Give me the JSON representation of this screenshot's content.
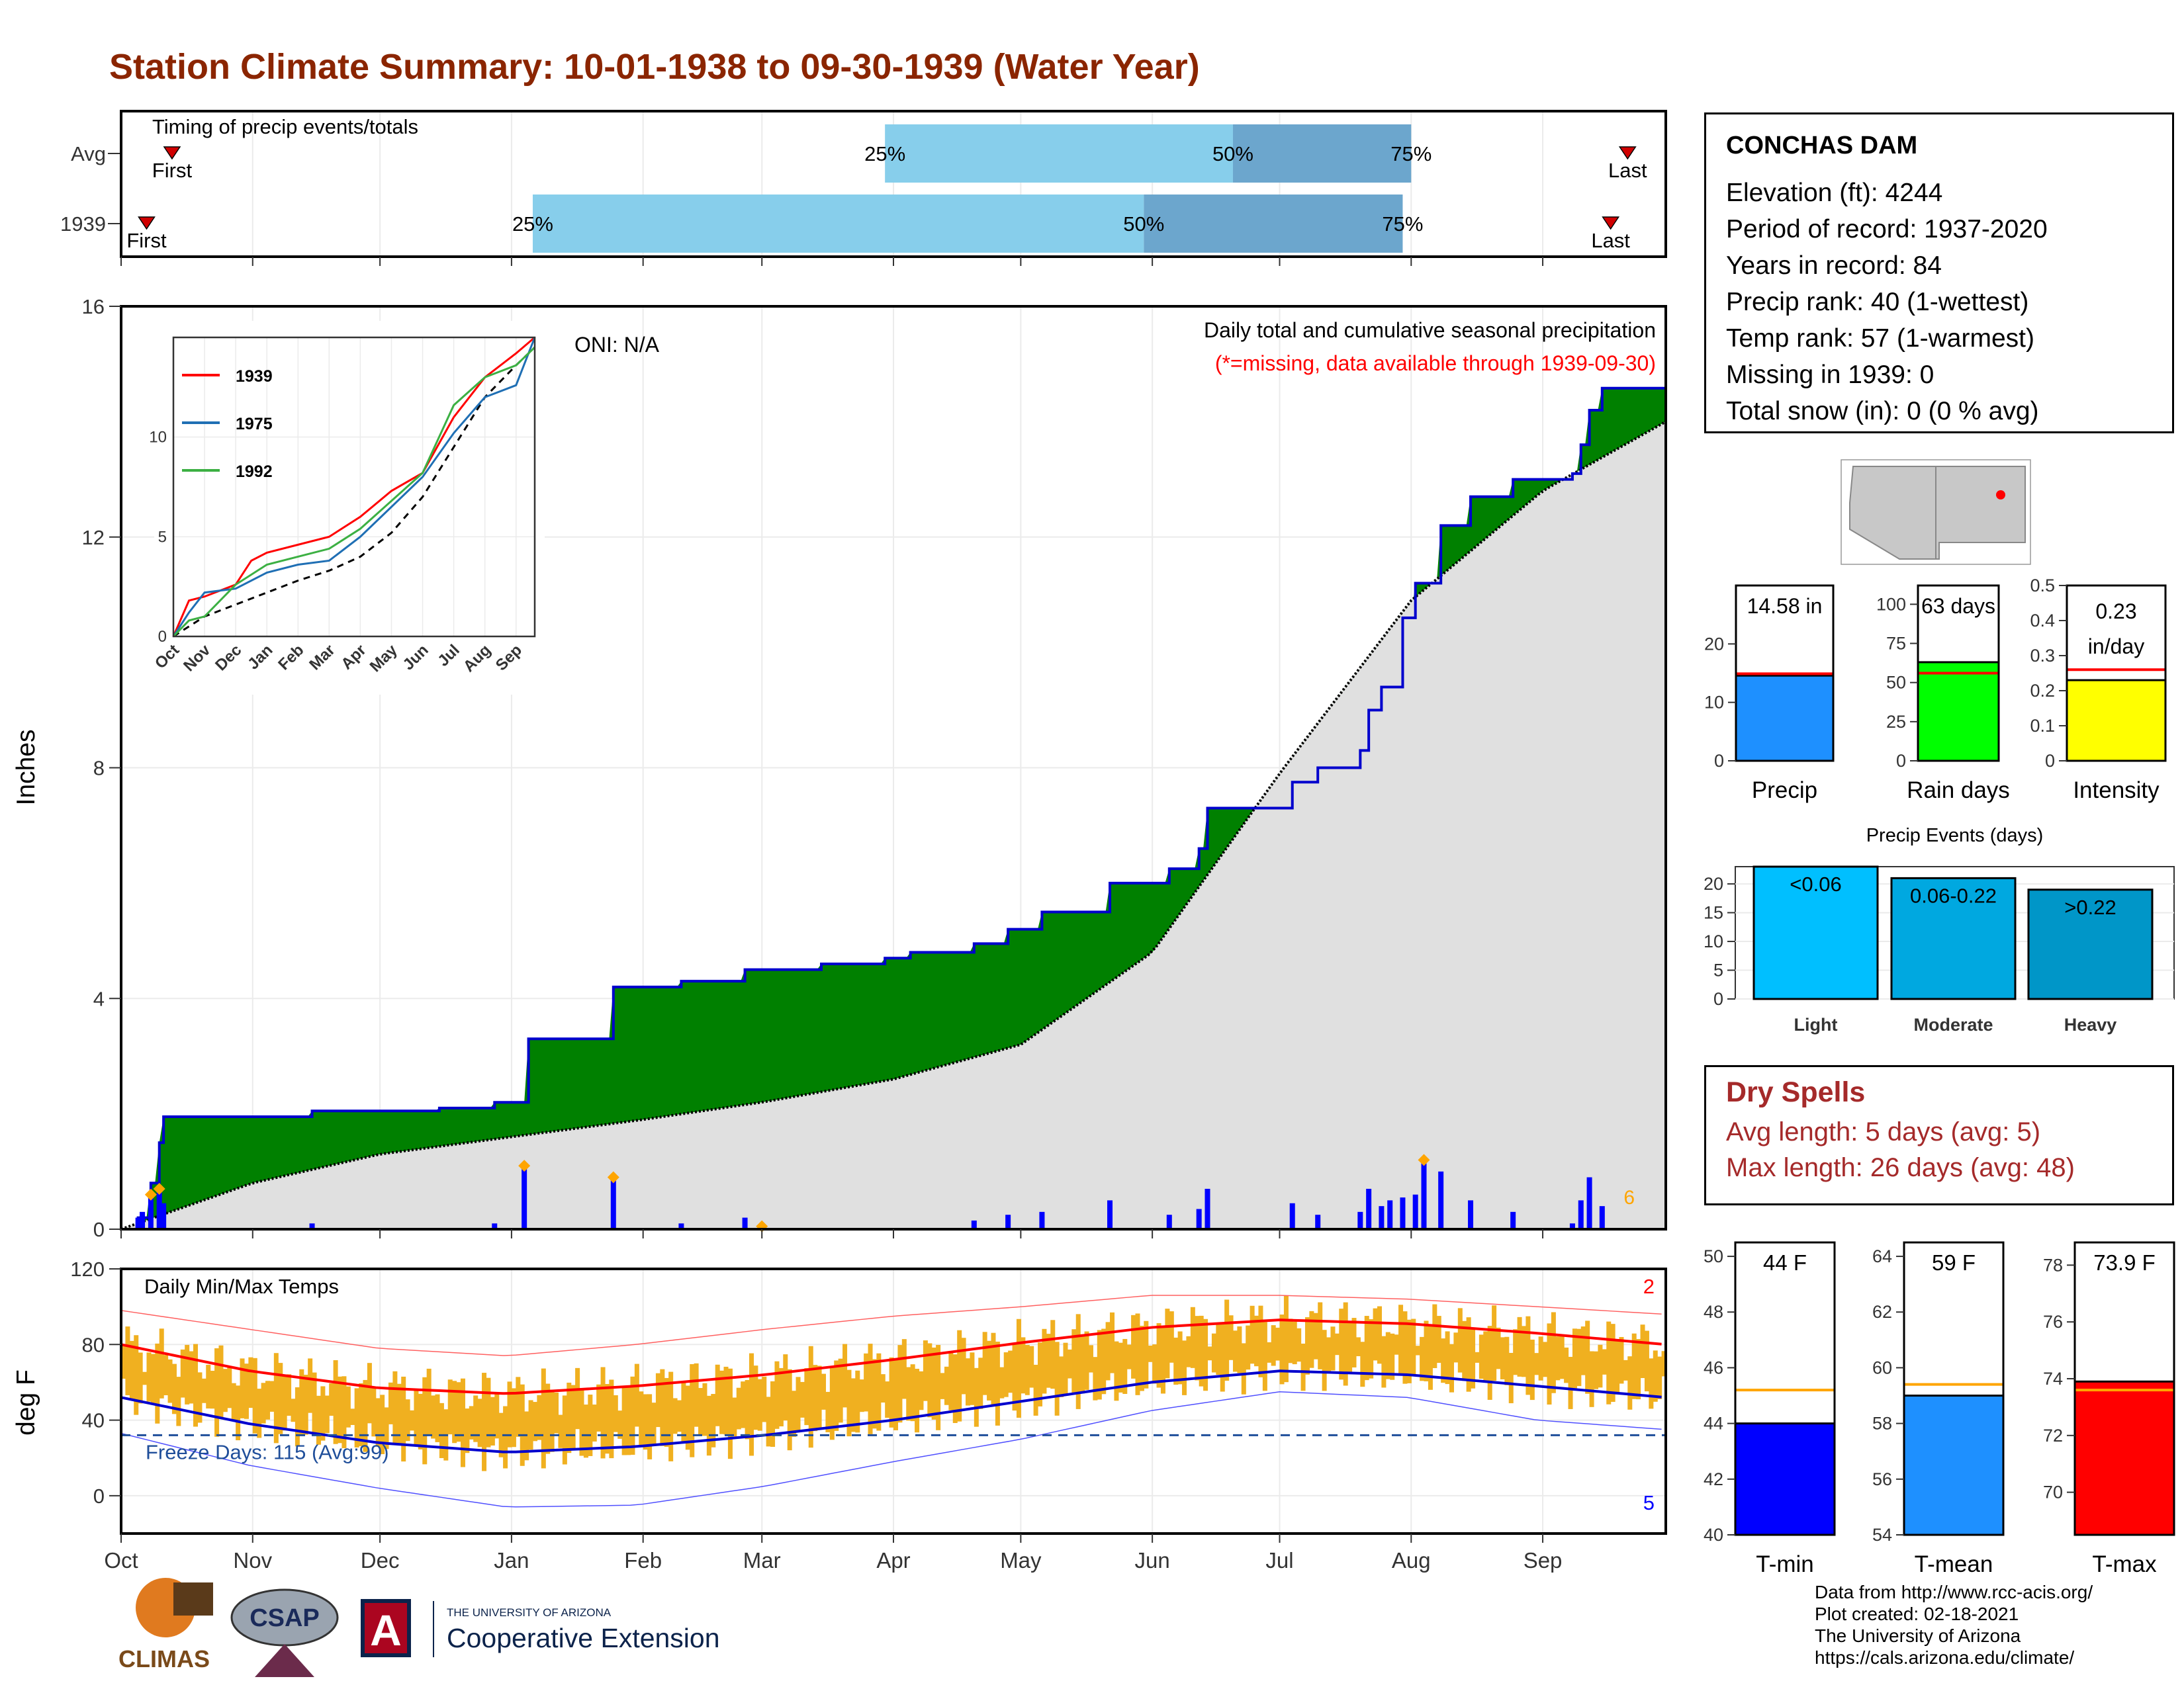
{
  "title": "Station Climate Summary: 10-01-1938 to 09-30-1939 (Water Year)",
  "colors": {
    "title": "#8B2500",
    "accent_red": "#FF0000",
    "precip_blue": "#1E90FF",
    "green_fill": "#008000",
    "cum_line": "#0000CD",
    "avg_fill": "#E0E0E0",
    "temp_bar": "#F0B020",
    "light": "#00BFFF",
    "moderate": "#00A8E0",
    "heavy": "#0096C8",
    "tmin": "#0000FF",
    "tmean": "#1E90FF",
    "tmax": "#FF0000",
    "rain": "#00FF00",
    "intensity": "#FFFF00",
    "avg_line": "#FFA500",
    "dry_text": "#A52A2A",
    "q_light": "#87CEEB",
    "q_dark": "#6CA6CD"
  },
  "station": {
    "name": "CONCHAS DAM",
    "lines": [
      "Elevation (ft): 4244",
      "Period of record: 1937-2020",
      "Years in record: 84",
      "Precip rank: 40 (1-wettest)",
      "Temp rank: 57 (1-warmest)",
      "Missing in 1939: 0",
      "Total snow (in): 0 (0 % avg)"
    ]
  },
  "dry_spells": {
    "title": "Dry Spells",
    "lines": [
      "Avg length: 5 days (avg: 5)",
      "Max length: 26 days (avg: 48)"
    ]
  },
  "credits": [
    "Data from http://www.rcc-acis.org/",
    "Plot created: 02-18-2021",
    "The University of Arizona",
    "https://cals.arizona.edu/climate/"
  ],
  "logos": {
    "climas": "CLIMAS",
    "csap": "CSAP",
    "ua_small": "THE UNIVERSITY OF ARIZONA",
    "ua_ext": "Cooperative Extension",
    "ua_letter": "A"
  },
  "chart_data": [
    {
      "name": "timing",
      "type": "bar",
      "title": "Timing of precip events/totals",
      "rows": [
        "Avg",
        "1939"
      ],
      "quantile_labels": [
        "25%",
        "50%",
        "75%"
      ],
      "first_label": "First",
      "last_label": "Last",
      "avg": {
        "first": "1938-10-13",
        "q25": "1939-03-30",
        "q50": "1939-06-20",
        "q75": "1939-08-01",
        "last": "1939-09-21"
      },
      "y1939": {
        "first": "1938-10-07",
        "q25": "1939-01-06",
        "q50": "1939-05-30",
        "q75": "1939-07-30",
        "last": "1939-09-17"
      }
    },
    {
      "name": "precipitation",
      "type": "area",
      "title": "Daily total and cumulative seasonal precipitation",
      "subtitle": "(*=missing, data available through 1939-09-30)",
      "oni_label": "ONI: N/A",
      "ylabel": "Inches",
      "ylim": [
        0,
        16
      ],
      "yticks": [
        0,
        4,
        8,
        12,
        16
      ],
      "corner_count": "6",
      "cumulative_1939": [
        [
          "1938-10-01",
          0
        ],
        [
          "1938-10-05",
          0.2
        ],
        [
          "1938-10-08",
          0.8
        ],
        [
          "1938-10-10",
          1.5
        ],
        [
          "1938-10-11",
          1.95
        ],
        [
          "1938-11-15",
          2.05
        ],
        [
          "1938-12-15",
          2.1
        ],
        [
          "1938-12-28",
          2.2
        ],
        [
          "1939-01-05",
          3.3
        ],
        [
          "1939-01-25",
          4.2
        ],
        [
          "1939-02-10",
          4.3
        ],
        [
          "1939-02-25",
          4.5
        ],
        [
          "1939-03-15",
          4.6
        ],
        [
          "1939-03-30",
          4.7
        ],
        [
          "1939-04-05",
          4.8
        ],
        [
          "1939-04-20",
          4.95
        ],
        [
          "1939-04-28",
          5.2
        ],
        [
          "1939-05-06",
          5.5
        ],
        [
          "1939-05-22",
          6.0
        ],
        [
          "1939-06-05",
          6.25
        ],
        [
          "1939-06-12",
          6.6
        ],
        [
          "1939-06-14",
          7.3
        ],
        [
          "1939-07-04",
          7.75
        ],
        [
          "1939-07-10",
          8.0
        ],
        [
          "1939-07-20",
          8.3
        ],
        [
          "1939-07-22",
          9.0
        ],
        [
          "1939-07-25",
          9.4
        ],
        [
          "1939-07-30",
          10.6
        ],
        [
          "1939-08-02",
          11.2
        ],
        [
          "1939-08-08",
          12.2
        ],
        [
          "1939-08-15",
          12.7
        ],
        [
          "1939-08-25",
          13.0
        ],
        [
          "1939-09-08",
          13.1
        ],
        [
          "1939-09-10",
          13.6
        ],
        [
          "1939-09-12",
          14.2
        ],
        [
          "1939-09-15",
          14.58
        ],
        [
          "1939-09-30",
          14.58
        ]
      ],
      "average": [
        [
          "1938-10-01",
          0
        ],
        [
          "1938-11-01",
          0.8
        ],
        [
          "1938-12-01",
          1.3
        ],
        [
          "1939-01-01",
          1.6
        ],
        [
          "1939-02-01",
          1.9
        ],
        [
          "1939-03-01",
          2.2
        ],
        [
          "1939-04-01",
          2.6
        ],
        [
          "1939-05-01",
          3.2
        ],
        [
          "1939-06-01",
          4.8
        ],
        [
          "1939-07-01",
          7.9
        ],
        [
          "1939-08-01",
          10.9
        ],
        [
          "1939-09-01",
          12.8
        ],
        [
          "1939-09-30",
          14.0
        ]
      ],
      "daily_1939": [
        [
          "1938-10-05",
          0.2
        ],
        [
          "1938-10-06",
          0.3
        ],
        [
          "1938-10-08",
          0.6
        ],
        [
          "1938-10-10",
          0.7
        ],
        [
          "1938-10-11",
          0.45
        ],
        [
          "1938-11-15",
          0.1
        ],
        [
          "1938-12-28",
          0.1
        ],
        [
          "1939-01-04",
          1.1
        ],
        [
          "1939-01-25",
          0.9
        ],
        [
          "1939-02-10",
          0.1
        ],
        [
          "1939-02-25",
          0.2
        ],
        [
          "1939-04-20",
          0.15
        ],
        [
          "1939-04-28",
          0.25
        ],
        [
          "1939-05-06",
          0.3
        ],
        [
          "1939-05-22",
          0.5
        ],
        [
          "1939-06-05",
          0.25
        ],
        [
          "1939-06-12",
          0.35
        ],
        [
          "1939-06-14",
          0.7
        ],
        [
          "1939-07-04",
          0.45
        ],
        [
          "1939-07-10",
          0.25
        ],
        [
          "1939-07-20",
          0.3
        ],
        [
          "1939-07-22",
          0.7
        ],
        [
          "1939-07-25",
          0.4
        ],
        [
          "1939-07-27",
          0.5
        ],
        [
          "1939-07-30",
          0.55
        ],
        [
          "1939-08-02",
          0.6
        ],
        [
          "1939-08-04",
          1.2
        ],
        [
          "1939-08-08",
          1.0
        ],
        [
          "1939-08-15",
          0.5
        ],
        [
          "1939-08-25",
          0.3
        ],
        [
          "1939-09-08",
          0.1
        ],
        [
          "1939-09-10",
          0.5
        ],
        [
          "1939-09-12",
          0.9
        ],
        [
          "1939-09-15",
          0.4
        ]
      ],
      "record_markers": [
        "1938-10-08",
        "1938-10-10",
        "1939-01-04",
        "1939-01-25",
        "1939-03-01",
        "1939-08-04"
      ]
    },
    {
      "name": "inset",
      "type": "line",
      "ylim": [
        0,
        15
      ],
      "yticks": [
        0,
        5,
        10
      ],
      "x_labels": [
        "Oct",
        "Nov",
        "Dec",
        "Jan",
        "Feb",
        "Mar",
        "Apr",
        "May",
        "Jun",
        "Jul",
        "Aug",
        "Sep"
      ],
      "series": [
        {
          "name": "1939",
          "color": "#FF0000",
          "values": [
            [
              0,
              0
            ],
            [
              0.5,
              1.8
            ],
            [
              1,
              2.0
            ],
            [
              2,
              2.6
            ],
            [
              2.5,
              3.8
            ],
            [
              3,
              4.2
            ],
            [
              4,
              4.6
            ],
            [
              5,
              5.0
            ],
            [
              6,
              6.0
            ],
            [
              7,
              7.3
            ],
            [
              8,
              8.2
            ],
            [
              9,
              11.0
            ],
            [
              10,
              13.0
            ],
            [
              11,
              14.2
            ],
            [
              11.6,
              15.0
            ]
          ]
        },
        {
          "name": "1975",
          "color": "#1F6FB4",
          "values": [
            [
              0,
              0
            ],
            [
              0.5,
              1.2
            ],
            [
              1,
              2.2
            ],
            [
              2,
              2.4
            ],
            [
              3,
              3.2
            ],
            [
              4,
              3.6
            ],
            [
              5,
              3.8
            ],
            [
              6,
              5.0
            ],
            [
              7,
              6.5
            ],
            [
              8,
              8.0
            ],
            [
              9,
              10.2
            ],
            [
              10,
              12.0
            ],
            [
              11,
              12.6
            ],
            [
              11.6,
              15.0
            ]
          ]
        },
        {
          "name": "1992",
          "color": "#3CB043",
          "values": [
            [
              0,
              0
            ],
            [
              0.5,
              0.8
            ],
            [
              1,
              1.0
            ],
            [
              2,
              2.6
            ],
            [
              3,
              3.6
            ],
            [
              4,
              4.0
            ],
            [
              5,
              4.4
            ],
            [
              6,
              5.4
            ],
            [
              7,
              6.8
            ],
            [
              8,
              8.2
            ],
            [
              9,
              11.6
            ],
            [
              10,
              13.0
            ],
            [
              11,
              13.6
            ],
            [
              11.6,
              14.5
            ]
          ]
        }
      ],
      "average": [
        [
          0,
          0
        ],
        [
          1,
          1.0
        ],
        [
          2,
          1.6
        ],
        [
          3,
          2.2
        ],
        [
          4,
          2.8
        ],
        [
          5,
          3.3
        ],
        [
          6,
          4.0
        ],
        [
          7,
          5.2
        ],
        [
          8,
          7.0
        ],
        [
          9,
          9.5
        ],
        [
          10,
          12.0
        ],
        [
          11,
          13.6
        ],
        [
          11.6,
          14.5
        ]
      ]
    },
    {
      "name": "temperature",
      "type": "bar",
      "title": "Daily Min/Max Temps",
      "ylabel": "deg F",
      "ylim": [
        -20,
        120
      ],
      "yticks": [
        0,
        40,
        80,
        120
      ],
      "freeze_label": "Freeze Days: 115 (Avg:99)",
      "freeze_line": 32,
      "count_top": "2",
      "count_bottom": "5",
      "x_labels": [
        "Oct",
        "Nov",
        "Dec",
        "Jan",
        "Feb",
        "Mar",
        "Apr",
        "May",
        "Jun",
        "Jul",
        "Aug",
        "Sep"
      ],
      "avg_max": [
        [
          0,
          80
        ],
        [
          1,
          66
        ],
        [
          2,
          57
        ],
        [
          3,
          54
        ],
        [
          4,
          58
        ],
        [
          5,
          64
        ],
        [
          6,
          72
        ],
        [
          7,
          81
        ],
        [
          8,
          89
        ],
        [
          9,
          93
        ],
        [
          10,
          91
        ],
        [
          11,
          86
        ],
        [
          12,
          80
        ]
      ],
      "avg_min": [
        [
          0,
          52
        ],
        [
          1,
          38
        ],
        [
          2,
          28
        ],
        [
          3,
          23
        ],
        [
          4,
          26
        ],
        [
          5,
          32
        ],
        [
          6,
          40
        ],
        [
          7,
          50
        ],
        [
          8,
          60
        ],
        [
          9,
          66
        ],
        [
          10,
          64
        ],
        [
          11,
          58
        ],
        [
          12,
          52
        ]
      ],
      "record_max": [
        [
          0,
          98
        ],
        [
          1,
          88
        ],
        [
          2,
          78
        ],
        [
          3,
          74
        ],
        [
          4,
          80
        ],
        [
          5,
          88
        ],
        [
          6,
          95
        ],
        [
          7,
          100
        ],
        [
          8,
          106
        ],
        [
          9,
          106
        ],
        [
          10,
          104
        ],
        [
          11,
          100
        ],
        [
          12,
          96
        ]
      ],
      "record_min": [
        [
          0,
          33
        ],
        [
          1,
          16
        ],
        [
          2,
          4
        ],
        [
          3,
          -6
        ],
        [
          4,
          -5
        ],
        [
          5,
          5
        ],
        [
          6,
          18
        ],
        [
          7,
          30
        ],
        [
          8,
          45
        ],
        [
          9,
          55
        ],
        [
          10,
          52
        ],
        [
          11,
          40
        ],
        [
          12,
          35
        ]
      ]
    },
    {
      "name": "summary_bars",
      "type": "bar",
      "panels": [
        {
          "label": "Precip",
          "value": 14.58,
          "value_label": "14.58 in",
          "avg": 14.9,
          "ylim": [
            0,
            30
          ],
          "yticks": [
            0,
            10,
            20
          ],
          "color": "#1E90FF"
        },
        {
          "label": "Rain days",
          "value": 63,
          "value_label": "63 days",
          "avg": 56,
          "ylim": [
            0,
            112
          ],
          "yticks": [
            0,
            25,
            50,
            75,
            100
          ],
          "color": "#00FF00"
        },
        {
          "label": "Intensity",
          "value": 0.23,
          "value_label": "0.23 in/day",
          "avg": 0.26,
          "ylim": [
            0,
            0.5
          ],
          "yticks": [
            0.0,
            0.1,
            0.2,
            0.3,
            0.4,
            0.5
          ],
          "color": "#FFFF00"
        }
      ]
    },
    {
      "name": "precip_events",
      "type": "bar",
      "title": "Precip Events (days)",
      "categories": [
        "Light",
        "Moderate",
        "Heavy"
      ],
      "bar_labels": [
        "<0.06",
        "0.06-0.22",
        ">0.22"
      ],
      "values": [
        23,
        21,
        19
      ],
      "ylim": [
        0,
        23
      ],
      "yticks": [
        0,
        5,
        10,
        15,
        20
      ]
    },
    {
      "name": "temp_summary",
      "type": "bar",
      "panels": [
        {
          "label": "T-min",
          "value": 44,
          "value_label": "44 F",
          "avg": 45.2,
          "ylim": [
            40,
            50.5
          ],
          "yticks": [
            40,
            42,
            44,
            46,
            48,
            50
          ],
          "color": "#0000FF"
        },
        {
          "label": "T-mean",
          "value": 59,
          "value_label": "59 F",
          "avg": 59.4,
          "ylim": [
            54,
            64.5
          ],
          "yticks": [
            54,
            56,
            58,
            60,
            62,
            64
          ],
          "color": "#1E90FF"
        },
        {
          "label": "T-max",
          "value": 73.9,
          "value_label": "73.9 F",
          "avg": 73.6,
          "ylim": [
            68.5,
            78.8
          ],
          "yticks": [
            70,
            72,
            74,
            76,
            78
          ],
          "color": "#FF0000"
        }
      ]
    }
  ]
}
